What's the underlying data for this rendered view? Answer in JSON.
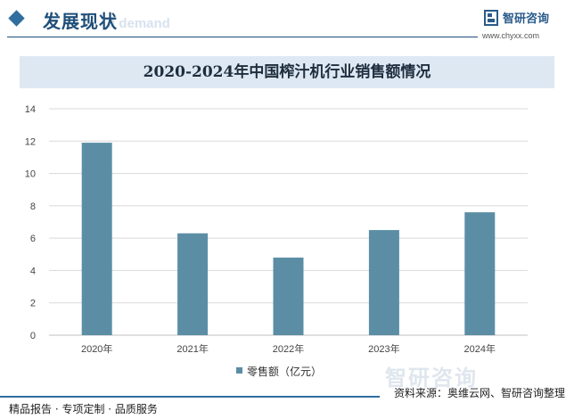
{
  "header": {
    "title": "发展现状",
    "watermark_text": "d demand",
    "brand_name": "智研咨询",
    "brand_url": "www.chyxx.com"
  },
  "chart_data": {
    "type": "bar",
    "title": "2020-2024年中国榨汁机行业销售额情况",
    "categories": [
      "2020年",
      "2021年",
      "2022年",
      "2023年",
      "2024年"
    ],
    "series": [
      {
        "name": "零售额（亿元）",
        "values": [
          11.9,
          6.3,
          4.8,
          6.5,
          7.6
        ]
      }
    ],
    "xlabel": "",
    "ylabel": "",
    "ylim": [
      0,
      14
    ],
    "yticks": [
      0,
      2,
      4,
      6,
      8,
      10,
      12,
      14
    ],
    "grid": true,
    "legend_position": "bottom",
    "color": "#5b8ea5"
  },
  "footer": {
    "source": "资料来源：奥维云网、智研咨询整理",
    "slogan": "精品报告 · 专项定制 · 品质服务",
    "watermark": "智研咨询"
  }
}
